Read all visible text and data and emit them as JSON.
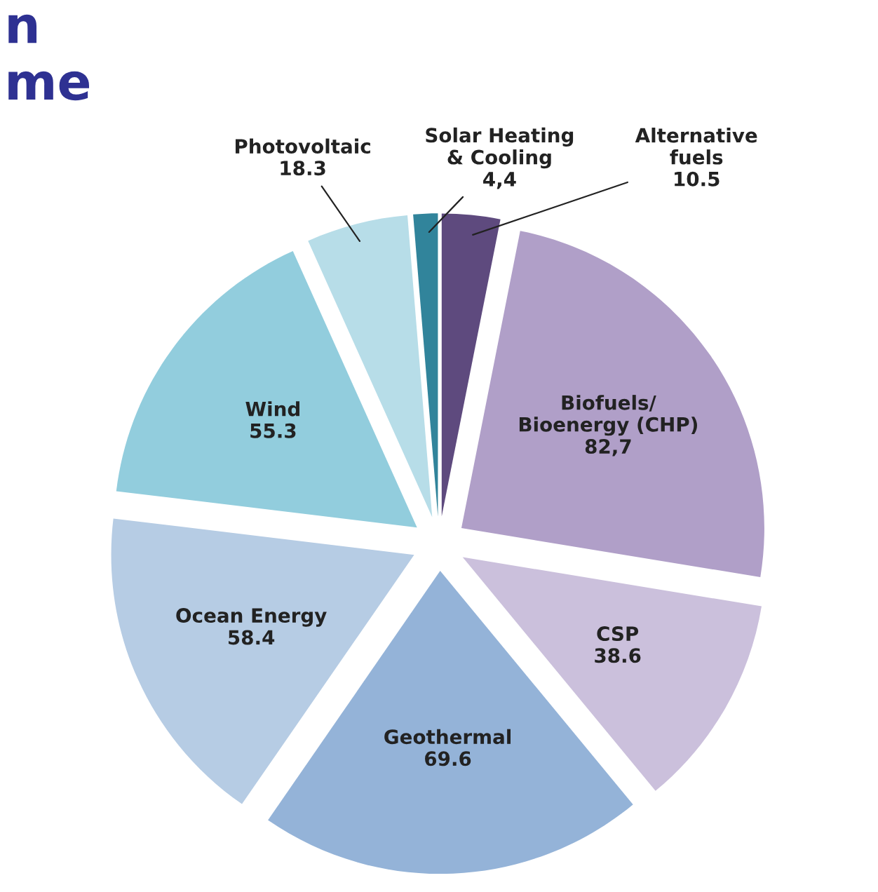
{
  "chart_data": {
    "type": "pie",
    "title": "n\nme",
    "categories": [
      "Alternative\nfuels",
      "Biofuels/\nBioenergy (CHP)",
      "CSP",
      "Geothermal",
      "Ocean Energy",
      "Wind",
      "Photovoltaic",
      "Solar Heating\n& Cooling"
    ],
    "values": [
      10.5,
      82.7,
      38.6,
      69.6,
      58.4,
      55.3,
      18.3,
      4.4
    ],
    "value_labels": [
      "10.5",
      "82,7",
      "38.6",
      "69.6",
      "58.4",
      "55.3",
      "18.3",
      "4,4"
    ],
    "colors": [
      "#5e4a7e",
      "#b09fc8",
      "#cbc0dc",
      "#94b3d8",
      "#b6cce4",
      "#92cddd",
      "#b7dde8",
      "#31849b"
    ],
    "legend": false
  }
}
